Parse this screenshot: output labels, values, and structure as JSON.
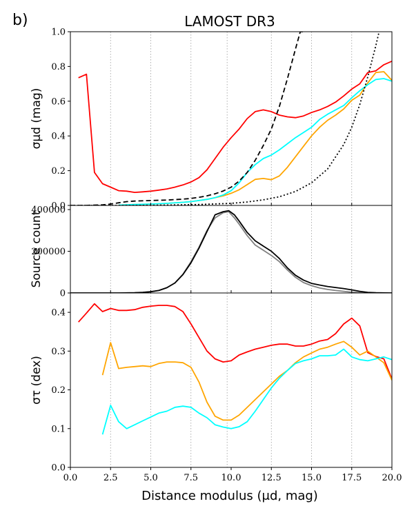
{
  "figure": {
    "panel_label": "b)",
    "title": "LAMOST DR3",
    "xlabel": "Distance modulus (μd, mag)",
    "xlim": [
      0,
      20
    ],
    "xticks": [
      0.0,
      2.5,
      5.0,
      7.5,
      10.0,
      12.5,
      15.0,
      17.5,
      20.0
    ],
    "xtick_labels": [
      "0.0",
      "2.5",
      "5.0",
      "7.5",
      "10.0",
      "12.5",
      "15.0",
      "17.5",
      "20.0"
    ],
    "vlines": [
      2.5,
      5.0,
      7.5,
      9.75,
      12.5,
      15.0,
      17.5
    ],
    "colors": {
      "red": "#ff0000",
      "orange": "#ffa500",
      "cyan": "#00ffff",
      "black": "#000000",
      "gray": "#808080",
      "grid": "#999999"
    }
  },
  "chart_data": [
    {
      "id": "top",
      "type": "line",
      "ylabel": "σμd (mag)",
      "ylim": [
        0,
        1
      ],
      "yticks": [
        0.0,
        0.2,
        0.4,
        0.6,
        0.8,
        1.0
      ],
      "ytick_labels": [
        "0.0",
        "0.2",
        "0.4",
        "0.6",
        "0.8",
        "1.0"
      ],
      "series": [
        {
          "name": "red",
          "color": "red",
          "style": "solid",
          "x": [
            0.5,
            1.0,
            1.5,
            2.0,
            2.5,
            3.0,
            3.5,
            4.0,
            4.5,
            5.0,
            5.5,
            6.0,
            6.5,
            7.0,
            7.5,
            8.0,
            8.5,
            9.0,
            9.5,
            10.0,
            10.5,
            11.0,
            11.5,
            12.0,
            12.5,
            13.0,
            13.5,
            14.0,
            14.5,
            15.0,
            15.5,
            16.0,
            16.5,
            17.0,
            17.5,
            18.0,
            18.5,
            19.0,
            19.5,
            20.0
          ],
          "y": [
            0.735,
            0.755,
            0.19,
            0.125,
            0.105,
            0.085,
            0.082,
            0.075,
            0.078,
            0.082,
            0.088,
            0.095,
            0.105,
            0.118,
            0.135,
            0.16,
            0.205,
            0.27,
            0.335,
            0.39,
            0.44,
            0.5,
            0.54,
            0.55,
            0.54,
            0.52,
            0.51,
            0.505,
            0.515,
            0.535,
            0.55,
            0.57,
            0.595,
            0.63,
            0.67,
            0.7,
            0.765,
            0.775,
            0.81,
            0.83
          ]
        },
        {
          "name": "orange",
          "color": "orange",
          "style": "solid",
          "x": [
            3.0,
            4.0,
            5.0,
            6.0,
            7.0,
            7.5,
            8.0,
            8.5,
            9.0,
            9.5,
            10.0,
            10.5,
            11.0,
            11.5,
            12.0,
            12.5,
            13.0,
            13.5,
            14.0,
            14.5,
            15.0,
            15.5,
            16.0,
            16.5,
            17.0,
            17.5,
            18.0,
            18.5,
            19.0,
            19.5,
            20.0
          ],
          "y": [
            0.002,
            0.005,
            0.008,
            0.012,
            0.018,
            0.022,
            0.028,
            0.035,
            0.045,
            0.055,
            0.07,
            0.09,
            0.12,
            0.15,
            0.155,
            0.148,
            0.17,
            0.22,
            0.28,
            0.34,
            0.4,
            0.45,
            0.49,
            0.52,
            0.555,
            0.605,
            0.635,
            0.705,
            0.765,
            0.77,
            0.72
          ]
        },
        {
          "name": "cyan",
          "color": "cyan",
          "style": "solid",
          "x": [
            3.0,
            4.0,
            5.0,
            6.0,
            7.0,
            7.5,
            8.0,
            8.5,
            9.0,
            9.5,
            10.0,
            10.5,
            11.0,
            11.5,
            12.0,
            12.5,
            13.0,
            13.5,
            14.0,
            14.5,
            15.0,
            15.5,
            16.0,
            16.5,
            17.0,
            17.5,
            18.0,
            18.5,
            19.0,
            19.5,
            20.0
          ],
          "y": [
            0.002,
            0.005,
            0.008,
            0.012,
            0.018,
            0.022,
            0.028,
            0.035,
            0.045,
            0.06,
            0.085,
            0.13,
            0.19,
            0.235,
            0.27,
            0.29,
            0.32,
            0.355,
            0.39,
            0.42,
            0.45,
            0.495,
            0.525,
            0.55,
            0.575,
            0.62,
            0.66,
            0.695,
            0.725,
            0.73,
            0.715
          ]
        },
        {
          "name": "dashed",
          "color": "black",
          "style": "dashed",
          "x": [
            0,
            1,
            2,
            2.5,
            3,
            3.5,
            4,
            5,
            6,
            7,
            7.5,
            8,
            8.5,
            9,
            9.5,
            10,
            10.5,
            11,
            11.5,
            12,
            12.5,
            13,
            13.5,
            14,
            14.3,
            14.5
          ],
          "y": [
            0.0,
            0.0,
            0.003,
            0.008,
            0.015,
            0.022,
            0.025,
            0.028,
            0.031,
            0.036,
            0.04,
            0.047,
            0.055,
            0.067,
            0.083,
            0.105,
            0.14,
            0.19,
            0.26,
            0.345,
            0.44,
            0.57,
            0.73,
            0.9,
            1.0,
            1.0
          ]
        },
        {
          "name": "dotted",
          "color": "black",
          "style": "dotted",
          "x": [
            0,
            2,
            4,
            6,
            8,
            10,
            11,
            12,
            13,
            14,
            15,
            16,
            17,
            17.5,
            18,
            18.5,
            19,
            19.2
          ],
          "y": [
            0.0,
            0.0,
            0.0,
            0.002,
            0.005,
            0.012,
            0.02,
            0.032,
            0.05,
            0.08,
            0.13,
            0.21,
            0.35,
            0.45,
            0.58,
            0.74,
            0.92,
            1.0
          ]
        }
      ]
    },
    {
      "id": "middle",
      "type": "line",
      "ylabel": "Source count",
      "ylim": [
        0,
        420000
      ],
      "yticks": [
        0,
        200000,
        400000
      ],
      "ytick_labels": [
        "0",
        "200000",
        "400000"
      ],
      "series": [
        {
          "name": "gray",
          "color": "gray",
          "style": "solid",
          "x": [
            0,
            2,
            3,
            4,
            4.5,
            5,
            5.5,
            6,
            6.5,
            7,
            7.5,
            8,
            8.5,
            9,
            9.5,
            9.85,
            10.2,
            10.5,
            11,
            11.5,
            12,
            12.5,
            13,
            13.5,
            14,
            14.5,
            15,
            15.5,
            16,
            16.5,
            17,
            17.5,
            18,
            19,
            20
          ],
          "y": [
            0,
            0,
            100,
            1000,
            2500,
            6000,
            12000,
            25000,
            48000,
            90000,
            150000,
            220000,
            300000,
            360000,
            385000,
            390000,
            360000,
            330000,
            275000,
            230000,
            205000,
            180000,
            150000,
            110000,
            75000,
            50000,
            35000,
            24000,
            17000,
            12000,
            8000,
            4000,
            2000,
            500,
            0
          ]
        },
        {
          "name": "black",
          "color": "black",
          "style": "solid",
          "x": [
            0,
            2,
            3,
            4,
            4.5,
            5,
            5.5,
            6,
            6.5,
            7,
            7.5,
            8,
            8.5,
            9,
            9.5,
            9.85,
            10.2,
            10.5,
            11,
            11.5,
            12,
            12.5,
            13,
            13.5,
            14,
            14.5,
            15,
            15.5,
            16,
            16.5,
            17,
            17.5,
            18,
            18.5,
            19,
            20
          ],
          "y": [
            0,
            0,
            100,
            1000,
            2500,
            6000,
            12000,
            25000,
            48000,
            88000,
            145000,
            215000,
            295000,
            375000,
            390000,
            395000,
            375000,
            345000,
            290000,
            250000,
            225000,
            200000,
            165000,
            120000,
            85000,
            62000,
            46000,
            38000,
            31000,
            26000,
            21000,
            15000,
            8000,
            3000,
            1000,
            0
          ]
        }
      ]
    },
    {
      "id": "bottom",
      "type": "line",
      "ylabel": "στ (dex)",
      "ylim": [
        0,
        0.45
      ],
      "yticks": [
        0.0,
        0.1,
        0.2,
        0.3,
        0.4
      ],
      "ytick_labels": [
        "0.0",
        "0.1",
        "0.2",
        "0.3",
        "0.4"
      ],
      "series": [
        {
          "name": "red",
          "color": "red",
          "style": "solid",
          "x": [
            0.5,
            1.0,
            1.5,
            2.0,
            2.5,
            3.0,
            3.5,
            4.0,
            4.5,
            5.0,
            5.5,
            6.0,
            6.5,
            7.0,
            7.5,
            8.0,
            8.5,
            9.0,
            9.5,
            10.0,
            10.5,
            11.0,
            11.5,
            12.0,
            12.5,
            13.0,
            13.5,
            14.0,
            14.5,
            15.0,
            15.5,
            16.0,
            16.5,
            17.0,
            17.5,
            18.0,
            18.5,
            19.0,
            19.5,
            20.0
          ],
          "y": [
            0.375,
            0.398,
            0.422,
            0.402,
            0.41,
            0.405,
            0.405,
            0.407,
            0.413,
            0.416,
            0.418,
            0.418,
            0.415,
            0.402,
            0.37,
            0.335,
            0.3,
            0.28,
            0.272,
            0.275,
            0.29,
            0.298,
            0.305,
            0.31,
            0.315,
            0.318,
            0.318,
            0.313,
            0.313,
            0.318,
            0.326,
            0.33,
            0.345,
            0.37,
            0.385,
            0.365,
            0.296,
            0.286,
            0.28,
            0.228
          ]
        },
        {
          "name": "orange",
          "color": "orange",
          "style": "solid",
          "x": [
            2.0,
            2.5,
            3.0,
            3.5,
            4.0,
            4.5,
            5.0,
            5.5,
            6.0,
            6.5,
            7.0,
            7.5,
            8.0,
            8.5,
            9.0,
            9.5,
            10.0,
            10.5,
            11.0,
            11.5,
            12.0,
            12.5,
            13.0,
            13.5,
            14.0,
            14.5,
            15.0,
            15.5,
            16.0,
            16.5,
            17.0,
            17.5,
            18.0,
            18.5,
            19.0,
            19.5,
            20.0
          ],
          "y": [
            0.238,
            0.322,
            0.255,
            0.258,
            0.26,
            0.262,
            0.26,
            0.268,
            0.272,
            0.272,
            0.27,
            0.258,
            0.22,
            0.168,
            0.132,
            0.122,
            0.122,
            0.135,
            0.155,
            0.175,
            0.195,
            0.215,
            0.235,
            0.25,
            0.27,
            0.285,
            0.295,
            0.305,
            0.31,
            0.318,
            0.325,
            0.31,
            0.29,
            0.3,
            0.285,
            0.27,
            0.225
          ]
        },
        {
          "name": "cyan",
          "color": "cyan",
          "style": "solid",
          "x": [
            2.0,
            2.5,
            3.0,
            3.5,
            4.0,
            4.5,
            5.0,
            5.5,
            6.0,
            6.5,
            7.0,
            7.5,
            8.0,
            8.5,
            9.0,
            9.5,
            10.0,
            10.5,
            11.0,
            11.5,
            12.0,
            12.5,
            13.0,
            13.5,
            14.0,
            14.5,
            15.0,
            15.5,
            16.0,
            16.5,
            17.0,
            17.5,
            18.0,
            18.5,
            19.0,
            19.5,
            20.0
          ],
          "y": [
            0.085,
            0.16,
            0.118,
            0.1,
            0.11,
            0.12,
            0.13,
            0.14,
            0.145,
            0.155,
            0.158,
            0.155,
            0.14,
            0.128,
            0.11,
            0.104,
            0.1,
            0.105,
            0.118,
            0.145,
            0.175,
            0.205,
            0.23,
            0.25,
            0.268,
            0.275,
            0.28,
            0.288,
            0.288,
            0.29,
            0.305,
            0.285,
            0.278,
            0.275,
            0.28,
            0.285,
            0.278
          ]
        }
      ]
    }
  ]
}
